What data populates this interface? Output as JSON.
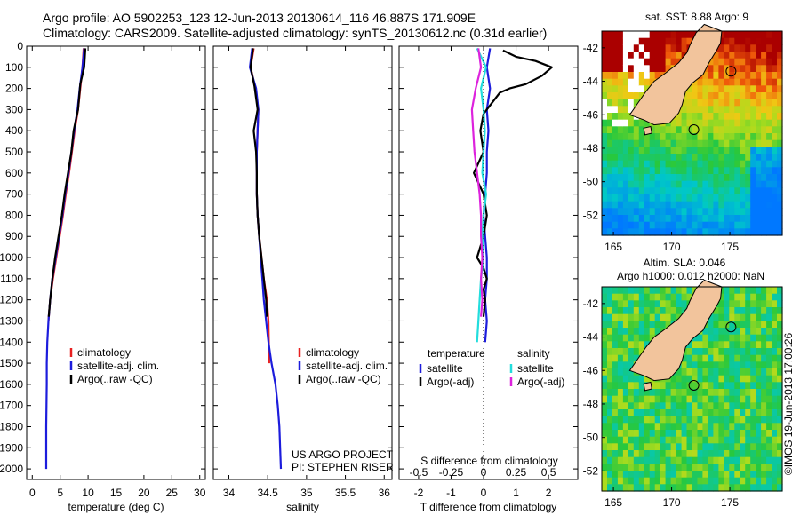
{
  "header": {
    "line1": "Argo profile: AO 5902253_123 12-Jun-2013 20130614_116 46.887S 171.909E",
    "line2": "Climatology: CARS2009. Satellite-adjusted climatology: synTS_20130612.nc (0.31d earlier)"
  },
  "colors": {
    "climatology": "#e82020",
    "satellite": "#1c1cdc",
    "argo": "#000000",
    "satellite_salinity": "#22dddd",
    "argo_salinity_adj": "#dd22dd",
    "land": "#f2c49c"
  },
  "chart_data": [
    {
      "type": "line",
      "id": "temperature",
      "xlabel": "temperature (deg C)",
      "xlim": [
        -1,
        31
      ],
      "ylim": [
        2050,
        0
      ],
      "xticks": [
        "0",
        "5",
        "10",
        "15",
        "20",
        "25",
        "30"
      ],
      "yticks": [
        "0",
        "100",
        "200",
        "300",
        "400",
        "500",
        "600",
        "700",
        "800",
        "900",
        "1000",
        "1100",
        "1200",
        "1300",
        "1400",
        "1500",
        "1600",
        "1700",
        "1800",
        "1900",
        "2000"
      ],
      "legend": [
        "climatology",
        "satellite-adj. clim.",
        "Argo(..raw -QC)"
      ],
      "series": [
        {
          "name": "climatology",
          "x": [
            9.2,
            9.0,
            8.6,
            8.2,
            7.6,
            7.1,
            6.6,
            6.0,
            5.5,
            4.9,
            4.3,
            3.7,
            3.2,
            2.9
          ],
          "y": [
            10,
            100,
            200,
            300,
            400,
            500,
            600,
            700,
            800,
            900,
            1000,
            1100,
            1200,
            1300
          ]
        },
        {
          "name": "satellite-adj. clim.",
          "x": [
            9.3,
            9.0,
            8.5,
            8.1,
            7.5,
            7.0,
            6.5,
            5.9,
            5.4,
            4.8,
            4.2,
            3.6,
            3.2,
            2.9,
            2.7,
            2.6,
            2.6,
            2.55,
            2.5,
            2.5
          ],
          "y": [
            10,
            100,
            200,
            300,
            400,
            500,
            600,
            700,
            800,
            900,
            1000,
            1100,
            1200,
            1300,
            1400,
            1500,
            1600,
            1700,
            1800,
            2000
          ]
        },
        {
          "name": "Argo(..raw -QC)",
          "x": [
            9.5,
            9.3,
            8.6,
            8.2,
            7.4,
            7.0,
            6.4,
            5.8,
            5.3,
            4.7,
            4.1,
            3.6,
            3.2,
            2.95
          ],
          "y": [
            10,
            100,
            180,
            300,
            400,
            500,
            600,
            700,
            800,
            900,
            1000,
            1100,
            1200,
            1280
          ]
        }
      ]
    },
    {
      "type": "line",
      "id": "salinity",
      "xlabel": "salinity",
      "xlim": [
        33.8,
        36.1
      ],
      "ylim": [
        2050,
        0
      ],
      "xticks": [
        "34",
        "34.5",
        "35",
        "35.5",
        "36"
      ],
      "legend": [
        "climatology",
        "satellite-adj. clim.",
        "Argo(..raw -QC)"
      ],
      "annotation": [
        "US ARGO PROJECT",
        "PI: STEPHEN RISER"
      ],
      "series": [
        {
          "name": "climatology",
          "x": [
            34.32,
            34.28,
            34.34,
            34.38,
            34.37,
            34.36,
            34.36,
            34.36,
            34.37,
            34.39,
            34.42,
            34.45,
            34.49,
            34.51,
            34.52
          ],
          "y": [
            10,
            100,
            200,
            300,
            400,
            500,
            600,
            700,
            800,
            900,
            1000,
            1100,
            1200,
            1300,
            1500
          ]
        },
        {
          "name": "satellite-adj. clim.",
          "x": [
            34.3,
            34.27,
            34.35,
            34.38,
            34.37,
            34.36,
            34.36,
            34.36,
            34.37,
            34.39,
            34.41,
            34.43,
            34.45,
            34.48,
            34.51,
            34.55,
            34.6,
            34.63,
            34.65,
            34.67
          ],
          "y": [
            10,
            100,
            200,
            300,
            400,
            500,
            600,
            700,
            800,
            900,
            1000,
            1100,
            1200,
            1300,
            1400,
            1500,
            1600,
            1700,
            1800,
            2000
          ]
        },
        {
          "name": "Argo(..raw -QC)",
          "x": [
            34.31,
            34.28,
            34.33,
            34.37,
            34.32,
            34.35,
            34.36,
            34.36,
            34.37,
            34.39,
            34.42,
            34.45,
            34.48,
            34.49
          ],
          "y": [
            10,
            100,
            190,
            300,
            400,
            500,
            600,
            700,
            800,
            900,
            1000,
            1100,
            1200,
            1280
          ]
        }
      ]
    },
    {
      "type": "line",
      "id": "difference",
      "xlabel": "T difference from climatology",
      "xlabel2": "S difference from climatology",
      "xlim": [
        -2.6,
        2.9
      ],
      "ylim": [
        2050,
        0
      ],
      "xticks": [
        "-2",
        "-1",
        "0",
        "1",
        "2"
      ],
      "xticks2": [
        "-0.5",
        "-0.25",
        "0",
        "0.25",
        "0.5"
      ],
      "legend_temperature": {
        "title": "temperature",
        "entries": [
          "satellite",
          "Argo(-adj)"
        ]
      },
      "legend_salinity": {
        "title": "salinity",
        "entries": [
          "satellite",
          "Argo(-adj)"
        ]
      },
      "series": [
        {
          "name": "temperature satellite",
          "x": [
            0.2,
            0.1,
            0.2,
            0.1,
            0.15,
            0.1,
            0.1,
            0.05,
            0.0,
            0.05,
            0.1,
            0.1,
            0.05,
            0.1,
            0.05
          ],
          "y": [
            10,
            100,
            200,
            300,
            400,
            500,
            600,
            700,
            800,
            900,
            1000,
            1100,
            1200,
            1300,
            1400
          ]
        },
        {
          "name": "temperature Argo(-adj)",
          "x": [
            0.6,
            1.0,
            1.6,
            2.1,
            1.8,
            1.3,
            0.8,
            0.5,
            0.2,
            0.0,
            -0.1,
            0.0,
            -0.3,
            0.0,
            0.1,
            0.0,
            -0.2,
            0.0,
            0.1,
            0.0,
            0.05,
            0.0
          ],
          "y": [
            20,
            50,
            70,
            100,
            140,
            180,
            200,
            220,
            280,
            320,
            400,
            500,
            600,
            700,
            800,
            900,
            1000,
            1050,
            1100,
            1150,
            1200,
            1280
          ]
        },
        {
          "name": "salinity satellite",
          "x": [
            -0.05,
            0.02,
            -0.02,
            0.0,
            0.01,
            0.0,
            -0.01,
            0.02,
            0.0,
            -0.01,
            0.0,
            -0.02,
            -0.03,
            -0.04,
            -0.05
          ],
          "y": [
            10,
            100,
            200,
            300,
            400,
            500,
            600,
            700,
            800,
            900,
            1000,
            1100,
            1200,
            1300,
            1400
          ]
        },
        {
          "name": "salinity Argo(-adj)",
          "x": [
            -0.04,
            -0.02,
            -0.06,
            -0.09,
            -0.08,
            -0.07,
            -0.05,
            -0.03,
            -0.02,
            -0.02,
            -0.01,
            -0.02,
            -0.01,
            -0.02
          ],
          "y": [
            10,
            100,
            200,
            300,
            400,
            500,
            600,
            700,
            800,
            900,
            1000,
            1100,
            1200,
            1280
          ]
        }
      ]
    },
    {
      "type": "heatmap",
      "id": "sst-map",
      "title": "sat. SST: 8.88 Argo: 9",
      "xticks": [
        "165",
        "170",
        "175"
      ],
      "yticks": [
        "-42",
        "-44",
        "-46",
        "-48",
        "-50",
        "-52"
      ],
      "xlim": [
        164,
        179.5
      ],
      "ylim": [
        -53.2,
        -41
      ],
      "argo_position": [
        171.909,
        -46.887
      ]
    },
    {
      "type": "heatmap",
      "id": "sla-map",
      "title1": "Altim. SLA: 0.046",
      "title2": "Argo h1000: 0.012 h2000: NaN",
      "xticks": [
        "165",
        "170",
        "175"
      ],
      "yticks": [
        "-42",
        "-44",
        "-46",
        "-48",
        "-50",
        "-52"
      ],
      "xlim": [
        164,
        179.5
      ],
      "ylim": [
        -53.2,
        -41
      ],
      "argo_position": [
        171.909,
        -46.887
      ],
      "side_label": "©IMOS 19-Jun-2013 17:00:26"
    }
  ]
}
